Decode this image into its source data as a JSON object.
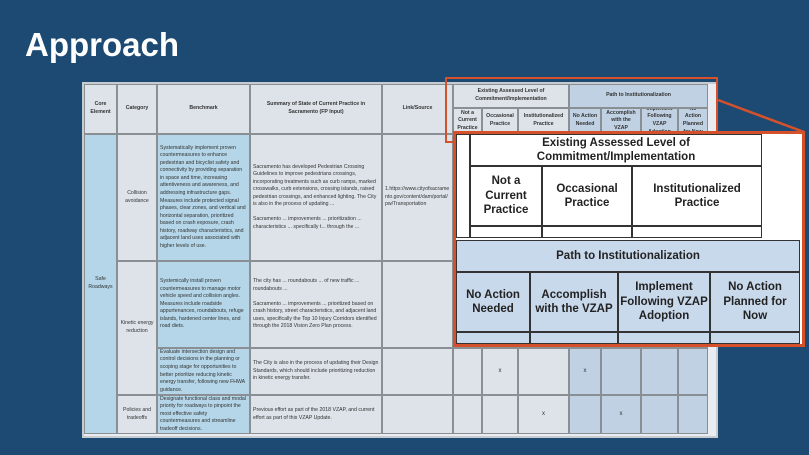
{
  "title": "Approach",
  "headers": {
    "core": "Core Element",
    "category": "Category",
    "benchmark": "Benchmark",
    "summary": "Summary of State of Current Practice in Sacramento (FP Input)",
    "link": "Link/Source",
    "existing": "Existing Assessed Level of Commitment/Implementation",
    "path": "Path to Institutionalization",
    "not_current": "Not a Current Practice",
    "occasional": "Occasional Practice",
    "institutionalized": "Institutionalized Practice",
    "no_action": "No Action Needed",
    "accomplish": "Accomplish with the VZAP",
    "implement": "Implement Following VZAP Adoption",
    "no_action_planned": "No Action Planned for Now"
  },
  "core_element": "Safe Roadways",
  "rows": [
    {
      "category": "Collision avoidance",
      "benchmark": "Systematically implement proven countermeasures to enhance pedestrian and bicyclist safety and connectivity by providing separation in space and time, increasing attentiveness and awareness, and addressing infrastructure gaps. Measures include protected signal phases, clear zones, and vertical and horizontal separation, prioritized based on crash exposure, crash history, roadway characteristics, and adjacent land uses associated with higher levels of use.",
      "summary": "Sacramento has developed Pedestrian Crossing Guidelines to improve pedestrians crossings, incorporating treatments such as curb ramps, marked crosswalks, curb extensions, crossing islands, raised pedestrian crossings, and enhanced lighting. The City is also in the process of updating ...\n\nSacramento ... improvements ... prioritization ... characteristics ... specifically t... through the ...",
      "link": "1.https://www.cityofsacramento.gov/content/dam/portal/pw/Transportation",
      "marks": [
        "",
        "",
        "",
        "",
        "",
        "",
        ""
      ]
    },
    {
      "category": "Kinetic energy reduction",
      "benchmark": "Systemically install proven countermeasures to manage motor vehicle speed and collision angles. Measures include roadside appurtenances, roundabouts, refuge islands, hardened center lines, and road diets.",
      "summary": "The city has ... roundabouts ... of new traffic ... roundabouts ...\n\nSacramento ... improvements ... prioritized based on crash history, street characteristics, and adjacent land uses, specifically the Top 10 Injury Corridors identified through the 2018 Vision Zero Plan process.",
      "link": "",
      "marks": [
        "",
        "",
        "",
        "",
        "",
        "",
        ""
      ]
    },
    {
      "category": "",
      "benchmark": "Evaluate intersection design and control decisions in the planning or scoping stage for opportunities to better prioritize reducing kinetic energy transfer, following new FHWA guidance.",
      "summary": "The City is also in the process of updating their Design Standards, which should include prioritizing reduction in kinetic energy transfer.",
      "link": "",
      "marks": [
        "",
        "x",
        "",
        "x",
        "",
        "",
        ""
      ]
    },
    {
      "category": "Policies and tradeoffs",
      "benchmark": "Designate functional class and modal priority for roadways to pinpoint the most effective safety countermeasures and streamline tradeoff decisions.",
      "summary": "Previous effort as part of the 2018 VZAP, and current effort as part of this VZAP Update.",
      "link": "",
      "marks": [
        "",
        "",
        "x",
        "",
        "x",
        "",
        ""
      ]
    }
  ],
  "colors": {
    "background": "#1d4a72",
    "highlight": "#d4512b",
    "path_fill": "#c0d1e3",
    "benchmark_fill": "#b4d6e8"
  }
}
